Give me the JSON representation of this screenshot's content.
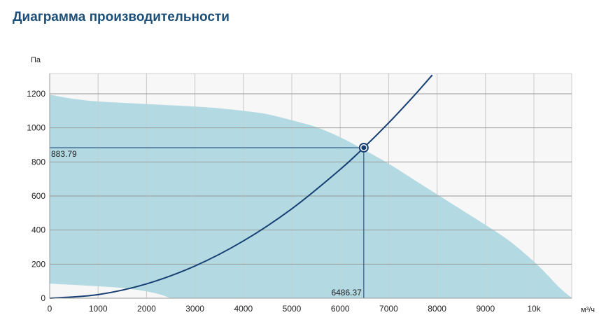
{
  "title": "Диаграмма производительности",
  "chart_data": {
    "type": "area",
    "y_unit": "Па",
    "x_unit": "м³/ч",
    "xlim": [
      0,
      10800
    ],
    "ylim": [
      0,
      1200
    ],
    "x_ticks": [
      {
        "value": 0,
        "label": "0"
      },
      {
        "value": 1000,
        "label": "1000"
      },
      {
        "value": 2000,
        "label": "2000"
      },
      {
        "value": 3000,
        "label": "3000"
      },
      {
        "value": 4000,
        "label": "4000"
      },
      {
        "value": 5000,
        "label": "5000"
      },
      {
        "value": 6000,
        "label": "6000"
      },
      {
        "value": 7000,
        "label": "7000"
      },
      {
        "value": 8000,
        "label": "8000"
      },
      {
        "value": 9000,
        "label": "9000"
      },
      {
        "value": 10000,
        "label": "10k"
      }
    ],
    "y_ticks": [
      {
        "value": 0,
        "label": "0"
      },
      {
        "value": 200,
        "label": "200"
      },
      {
        "value": 400,
        "label": "400"
      },
      {
        "value": 600,
        "label": "600"
      },
      {
        "value": 800,
        "label": "800"
      },
      {
        "value": 1000,
        "label": "1000"
      },
      {
        "value": 1200,
        "label": "1200"
      }
    ],
    "grid": true,
    "fan_area": {
      "upper": [
        [
          0,
          1195
        ],
        [
          500,
          1170
        ],
        [
          1000,
          1155
        ],
        [
          2000,
          1140
        ],
        [
          3000,
          1125
        ],
        [
          3500,
          1115
        ],
        [
          4000,
          1100
        ],
        [
          4500,
          1080
        ],
        [
          5000,
          1045
        ],
        [
          5500,
          1005
        ],
        [
          6000,
          945
        ],
        [
          6500,
          870
        ],
        [
          7000,
          790
        ],
        [
          7500,
          700
        ],
        [
          8000,
          610
        ],
        [
          8500,
          520
        ],
        [
          9000,
          430
        ],
        [
          9500,
          335
        ],
        [
          10000,
          215
        ],
        [
          10300,
          130
        ],
        [
          10500,
          70
        ],
        [
          10700,
          20
        ],
        [
          10800,
          0
        ]
      ],
      "lower": [
        [
          0,
          85
        ],
        [
          500,
          78
        ],
        [
          1000,
          70
        ],
        [
          1500,
          60
        ],
        [
          2000,
          40
        ],
        [
          2300,
          20
        ],
        [
          2500,
          0
        ]
      ],
      "color": "#b3dae3"
    },
    "system_curve": {
      "points": [
        [
          0,
          0
        ],
        [
          1000,
          21
        ],
        [
          2000,
          84
        ],
        [
          3000,
          189
        ],
        [
          4000,
          336
        ],
        [
          5000,
          525
        ],
        [
          6000,
          756
        ],
        [
          6486.37,
          883.79
        ],
        [
          7000,
          1029
        ],
        [
          7500,
          1181
        ],
        [
          7900,
          1310
        ]
      ],
      "color": "#163f74"
    },
    "operating_point": {
      "x": 6486.37,
      "y": 883.79,
      "x_label": "6486.37",
      "y_label": "883.79"
    }
  }
}
